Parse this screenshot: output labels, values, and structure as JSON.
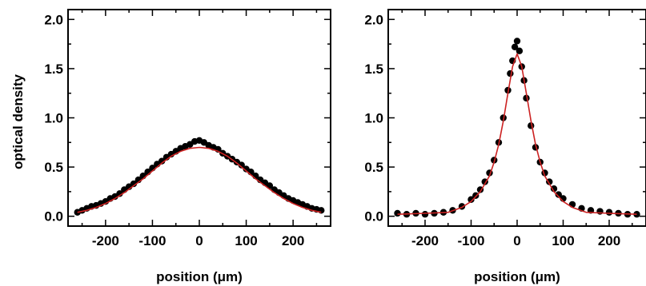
{
  "chart_data": [
    {
      "type": "scatter",
      "xlabel": "position (μm)",
      "ylabel": "optical density",
      "xlim": [
        -280,
        280
      ],
      "ylim": [
        -0.1,
        2.1
      ],
      "xticks": [
        -200,
        -100,
        0,
        100,
        200
      ],
      "yticks": [
        0.0,
        0.5,
        1.0,
        1.5,
        2.0
      ],
      "xtick_labels": [
        "-200",
        "-100",
        "0",
        "100",
        "200"
      ],
      "ytick_labels": [
        "0.0",
        "0.5",
        "1.0",
        "1.5",
        "2.0"
      ],
      "grid": false,
      "marker_color": "#000000",
      "fit_color": "#cc2222",
      "series": [
        {
          "kind": "points",
          "x": [
            -260,
            -250,
            -240,
            -230,
            -220,
            -210,
            -200,
            -190,
            -180,
            -170,
            -160,
            -150,
            -140,
            -130,
            -120,
            -110,
            -100,
            -90,
            -80,
            -70,
            -60,
            -50,
            -40,
            -30,
            -20,
            -10,
            0,
            10,
            20,
            30,
            40,
            50,
            60,
            70,
            80,
            90,
            100,
            110,
            120,
            130,
            140,
            150,
            160,
            170,
            180,
            190,
            200,
            210,
            220,
            230,
            240,
            250,
            260
          ],
          "y": [
            0.04,
            0.06,
            0.08,
            0.1,
            0.11,
            0.13,
            0.15,
            0.18,
            0.2,
            0.23,
            0.27,
            0.3,
            0.33,
            0.37,
            0.41,
            0.45,
            0.49,
            0.53,
            0.56,
            0.6,
            0.63,
            0.66,
            0.69,
            0.71,
            0.73,
            0.76,
            0.77,
            0.75,
            0.72,
            0.7,
            0.68,
            0.64,
            0.61,
            0.58,
            0.55,
            0.52,
            0.48,
            0.45,
            0.41,
            0.37,
            0.34,
            0.31,
            0.27,
            0.24,
            0.21,
            0.18,
            0.16,
            0.14,
            0.12,
            0.1,
            0.08,
            0.07,
            0.06
          ]
        },
        {
          "kind": "fit",
          "x": [
            -260,
            -240,
            -220,
            -200,
            -180,
            -160,
            -140,
            -120,
            -100,
            -80,
            -60,
            -40,
            -20,
            0,
            20,
            40,
            60,
            80,
            100,
            120,
            140,
            160,
            180,
            200,
            220,
            240,
            260
          ],
          "y": [
            0.04,
            0.06,
            0.09,
            0.13,
            0.18,
            0.24,
            0.31,
            0.38,
            0.46,
            0.54,
            0.61,
            0.66,
            0.69,
            0.7,
            0.69,
            0.66,
            0.61,
            0.54,
            0.46,
            0.38,
            0.31,
            0.24,
            0.18,
            0.13,
            0.09,
            0.06,
            0.04
          ]
        }
      ]
    },
    {
      "type": "scatter",
      "xlabel": "position (μm)",
      "ylabel": "",
      "xlim": [
        -280,
        280
      ],
      "ylim": [
        -0.1,
        2.1
      ],
      "xticks": [
        -200,
        -100,
        0,
        100,
        200
      ],
      "yticks": [
        0.0,
        0.5,
        1.0,
        1.5,
        2.0
      ],
      "xtick_labels": [
        "-200",
        "-100",
        "0",
        "100",
        "200"
      ],
      "ytick_labels": [
        "0.0",
        "0.5",
        "1.0",
        "1.5",
        "2.0"
      ],
      "grid": false,
      "marker_color": "#000000",
      "fit_color": "#cc2222",
      "series": [
        {
          "kind": "points",
          "x": [
            -260,
            -240,
            -220,
            -200,
            -180,
            -160,
            -140,
            -120,
            -100,
            -90,
            -80,
            -70,
            -60,
            -50,
            -40,
            -30,
            -20,
            -15,
            -10,
            -5,
            0,
            5,
            10,
            15,
            20,
            30,
            40,
            50,
            60,
            70,
            80,
            90,
            100,
            120,
            140,
            160,
            180,
            200,
            220,
            240,
            260
          ],
          "y": [
            0.03,
            0.02,
            0.03,
            0.02,
            0.03,
            0.04,
            0.06,
            0.1,
            0.17,
            0.21,
            0.27,
            0.35,
            0.44,
            0.57,
            0.75,
            1.0,
            1.28,
            1.45,
            1.58,
            1.72,
            1.78,
            1.68,
            1.52,
            1.38,
            1.2,
            0.92,
            0.7,
            0.55,
            0.44,
            0.35,
            0.28,
            0.22,
            0.18,
            0.12,
            0.08,
            0.06,
            0.05,
            0.04,
            0.03,
            0.02,
            0.02
          ]
        },
        {
          "kind": "fit",
          "x": [
            -260,
            -200,
            -150,
            -120,
            -100,
            -80,
            -60,
            -50,
            -40,
            -30,
            -20,
            -10,
            0,
            10,
            20,
            30,
            40,
            50,
            60,
            80,
            100,
            120,
            150,
            200,
            260
          ],
          "y": [
            0.02,
            0.03,
            0.04,
            0.09,
            0.15,
            0.25,
            0.41,
            0.55,
            0.73,
            0.97,
            1.25,
            1.52,
            1.65,
            1.52,
            1.25,
            0.97,
            0.73,
            0.55,
            0.41,
            0.25,
            0.15,
            0.09,
            0.04,
            0.03,
            0.02
          ]
        }
      ]
    }
  ]
}
